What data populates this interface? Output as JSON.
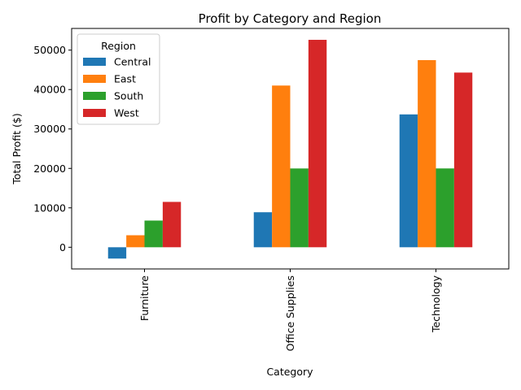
{
  "chart_data": {
    "type": "bar",
    "title": "Profit by Category and Region",
    "xlabel": "Category",
    "ylabel": "Total Profit ($)",
    "categories": [
      "Furniture",
      "Office Supplies",
      "Technology"
    ],
    "series": [
      {
        "name": "Central",
        "color": "#1f77b4",
        "values": [
          -2871,
          8880,
          33697
        ]
      },
      {
        "name": "East",
        "color": "#ff7f0e",
        "values": [
          3046,
          41015,
          47462
        ]
      },
      {
        "name": "South",
        "color": "#2ca02c",
        "values": [
          6771,
          19986,
          19992
        ]
      },
      {
        "name": "West",
        "color": "#d62728",
        "values": [
          11505,
          52610,
          44304
        ]
      }
    ],
    "ylim": [
      -5500,
      55500
    ],
    "yticks": [
      0,
      10000,
      20000,
      30000,
      40000,
      50000
    ],
    "ytick_labels": [
      "0",
      "10000",
      "20000",
      "30000",
      "40000",
      "50000"
    ],
    "legend": {
      "title": "Region",
      "placement": "top-left"
    },
    "grid": false
  }
}
